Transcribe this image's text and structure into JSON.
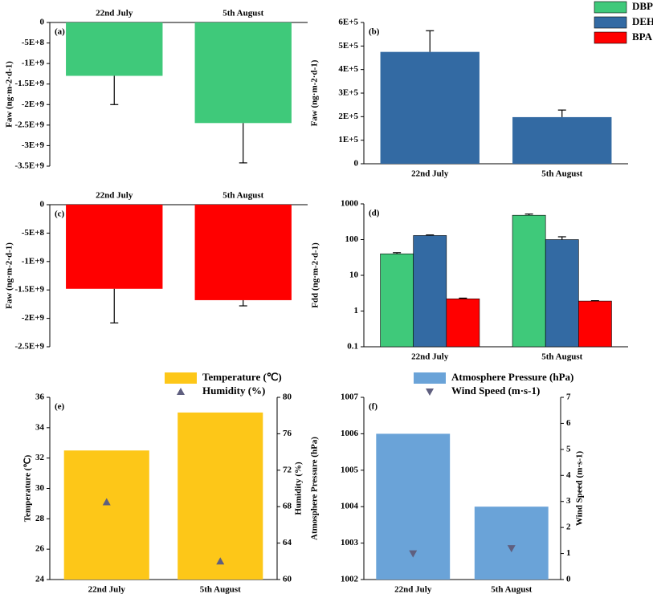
{
  "chart_data": [
    {
      "type": "bar",
      "label": "(a)",
      "ylabel": "Faw (ng·m-2·d-1)",
      "categories": [
        "22nd July",
        "5th August"
      ],
      "xaxis_position": "top",
      "series": [
        {
          "color": "#3fc97a",
          "values": [
            -1300000000,
            -2450000000
          ],
          "errors": [
            700000000,
            970000000
          ]
        }
      ],
      "ylim": [
        -3500000000,
        0
      ],
      "yticks": [
        0,
        {
          "value": -500000000,
          "label": "-5E+8"
        },
        {
          "value": -1000000000,
          "label": "-1E+9"
        },
        {
          "value": -1500000000,
          "label": "-1.5E+9"
        },
        {
          "value": -2000000000,
          "label": "-2E+9"
        },
        {
          "value": -2500000000,
          "label": "-2.5E+9"
        },
        {
          "value": -3000000000,
          "label": "-3E+9"
        },
        {
          "value": -3500000000,
          "label": "-3.5E+9"
        }
      ]
    },
    {
      "type": "bar",
      "label": "(b)",
      "ylabel": "Faw (ng·m-2·d-1)",
      "categories": [
        "22nd July",
        "5th August"
      ],
      "xaxis_position": "bottom",
      "series": [
        {
          "color": "#336aa3",
          "values": [
            475000,
            198000
          ],
          "errors": [
            90000,
            30000
          ]
        }
      ],
      "ylim": [
        0,
        600000
      ],
      "yticks": [
        0,
        {
          "value": 100000,
          "label": "1E+5"
        },
        {
          "value": 200000,
          "label": "2E+5"
        },
        {
          "value": 300000,
          "label": "3E+5"
        },
        {
          "value": 400000,
          "label": "4E+5"
        },
        {
          "value": 500000,
          "label": "5E+5"
        },
        {
          "value": 600000,
          "label": "6E+5"
        }
      ]
    },
    {
      "type": "bar",
      "label": "(c)",
      "ylabel": "Faw (ng·m-2·d-1)",
      "categories": [
        "22nd July",
        "5th August"
      ],
      "xaxis_position": "top",
      "series": [
        {
          "color": "#ff0000",
          "values": [
            -1480000000,
            -1680000000
          ],
          "errors": [
            600000000,
            100000000
          ]
        }
      ],
      "ylim": [
        -2500000000,
        0
      ],
      "yticks": [
        0,
        {
          "value": -500000000,
          "label": "-5E+8"
        },
        {
          "value": -1000000000,
          "label": "-1E+9"
        },
        {
          "value": -1500000000,
          "label": "-1.5E+9"
        },
        {
          "value": -2000000000,
          "label": "-2E+9"
        },
        {
          "value": -2500000000,
          "label": "-2.5E+9"
        }
      ]
    },
    {
      "type": "bar",
      "label": "(d)",
      "ylabel": "Fdd (ng·m-2·d-1)",
      "categories": [
        "22nd July",
        "5th August"
      ],
      "xaxis_position": "bottom",
      "log_y": true,
      "legend": "top-right",
      "series": [
        {
          "name": "DBP",
          "color": "#3fc97a",
          "values": [
            40,
            480
          ],
          "errors": [
            3,
            40
          ]
        },
        {
          "name": "DEHP",
          "color": "#336aa3",
          "values": [
            130,
            100
          ],
          "errors": [
            5,
            20
          ]
        },
        {
          "name": "BPA",
          "color": "#ff0000",
          "values": [
            2.2,
            1.9
          ],
          "errors": [
            0.1,
            0.05
          ]
        }
      ],
      "ylim": [
        0.1,
        1000
      ],
      "yticks": [
        0.1,
        1,
        10,
        100,
        1000
      ]
    },
    {
      "type": "bar",
      "label": "(e)",
      "ylabel": "Temperature (℃)",
      "y2label": "Humidity (%)",
      "categories": [
        "22nd July",
        "5th August"
      ],
      "xaxis_position": "bottom",
      "legend": "top",
      "series": [
        {
          "name": "Temperature (℃)",
          "color": "#fdc718",
          "values": [
            32.5,
            35
          ]
        },
        {
          "name": "Humidity (%)",
          "type": "scatter",
          "marker": "triangle-up",
          "axis": "y2",
          "color": "#5f5f7f",
          "values": [
            68.5,
            62
          ]
        }
      ],
      "ylim": [
        24,
        36
      ],
      "yticks": [
        24,
        26,
        28,
        30,
        32,
        34,
        36
      ],
      "y2lim": [
        60,
        80
      ],
      "y2ticks": [
        60,
        64,
        68,
        72,
        76,
        80
      ]
    },
    {
      "type": "bar",
      "label": "(f)",
      "ylabel": "Atmosphere Pressure (hPa)",
      "y2label": "Wind Speed (m·s-1)",
      "categories": [
        "22nd July",
        "5th August"
      ],
      "xaxis_position": "bottom",
      "legend": "top",
      "series": [
        {
          "name": "Atmosphere Pressure (hPa)",
          "color": "#6aa3d8",
          "values": [
            1006,
            1004
          ]
        },
        {
          "name": "Wind Speed (m·s-1)",
          "type": "scatter",
          "marker": "triangle-down",
          "axis": "y2",
          "color": "#5f5f7f",
          "values": [
            1.0,
            1.2
          ]
        }
      ],
      "ylim": [
        1002,
        1007
      ],
      "yticks": [
        1002,
        1003,
        1004,
        1005,
        1006,
        1007
      ],
      "y2lim": [
        0,
        7
      ],
      "y2ticks": [
        0,
        1,
        2,
        3,
        4,
        5,
        6,
        7
      ]
    }
  ]
}
